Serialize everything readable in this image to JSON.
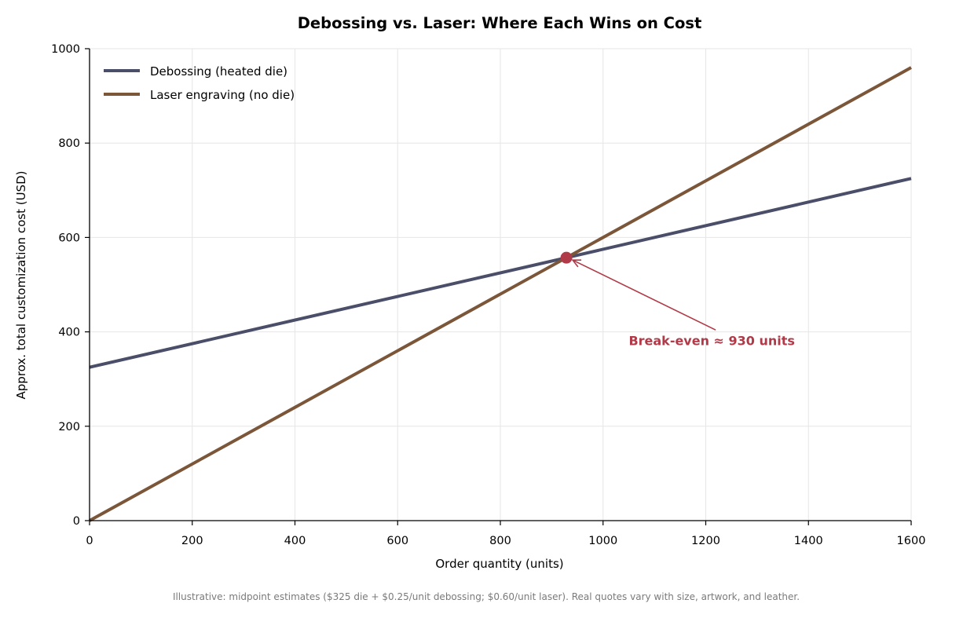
{
  "chart_data": {
    "type": "line",
    "title": "Debossing vs. Laser: Where Each Wins on Cost",
    "xlabel": "Order quantity (units)",
    "ylabel": "Approx. total customization cost (USD)",
    "xlim": [
      0,
      1600
    ],
    "ylim": [
      0,
      1000
    ],
    "x_ticks": [
      0,
      200,
      400,
      600,
      800,
      1000,
      1200,
      1400,
      1600
    ],
    "y_ticks": [
      0,
      200,
      400,
      600,
      800,
      1000
    ],
    "grid": true,
    "legend_position": "top-left",
    "series": [
      {
        "name": "Debossing (heated die)",
        "color": "#4a4e69",
        "x": [
          0,
          1600
        ],
        "y": [
          325,
          725
        ]
      },
      {
        "name": "Laser engraving (no die)",
        "color": "#7b5639",
        "x": [
          0,
          1600
        ],
        "y": [
          0,
          960
        ]
      }
    ],
    "annotation": {
      "text": "Break-even ≈ 930 units",
      "color": "#b03a48",
      "point": {
        "x": 928.6,
        "y": 557.1
      },
      "text_anchor": {
        "x": 1050,
        "y": 372
      }
    },
    "footnote": "Illustrative: midpoint estimates ($325 die + $0.25/unit debossing; $0.60/unit laser). Real quotes vary with size, artwork, and leather."
  }
}
